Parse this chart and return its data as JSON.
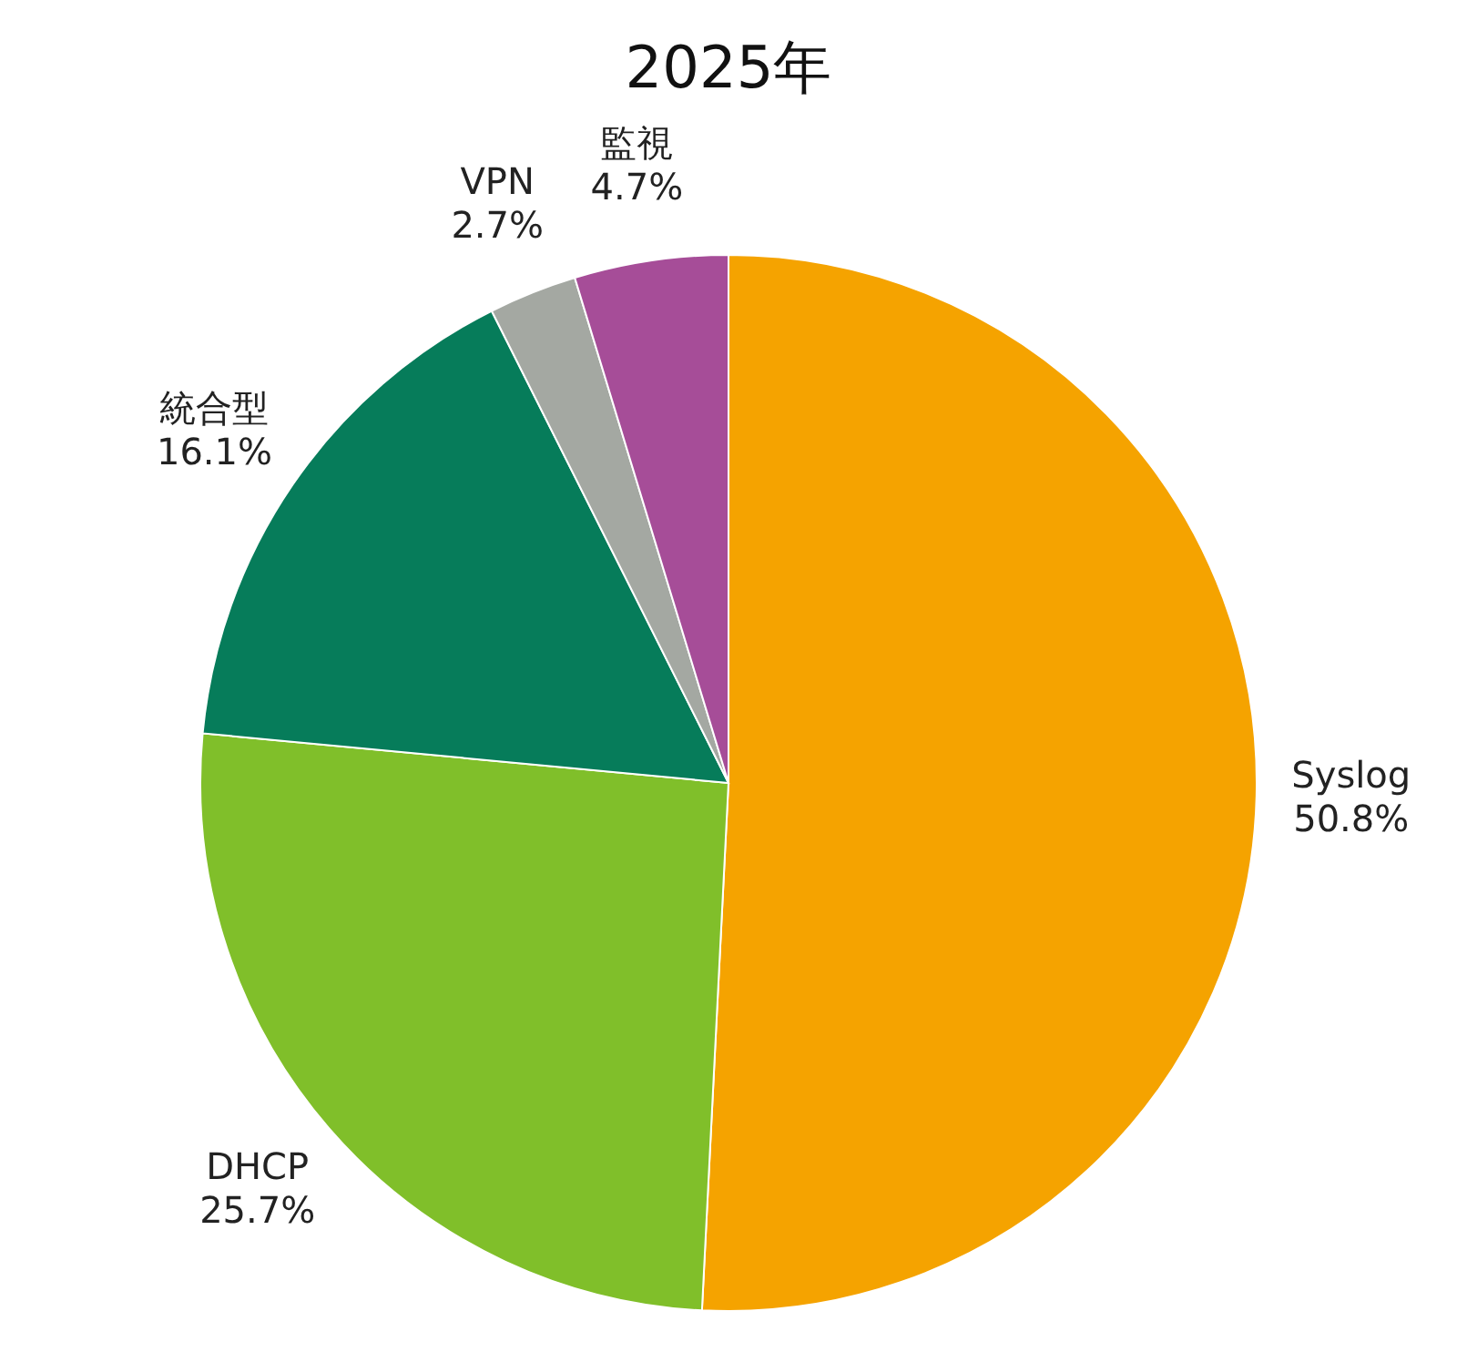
{
  "chart_data": {
    "type": "pie",
    "title": "2025年",
    "categories": [
      "Syslog",
      "DHCP",
      "統合型",
      "VPN",
      "監視"
    ],
    "values": [
      50.8,
      25.7,
      16.1,
      2.7,
      4.7
    ],
    "colors": [
      "#f5a300",
      "#80bf2a",
      "#067c5a",
      "#a4a8a2",
      "#a64d98"
    ],
    "value_labels": [
      "50.8%",
      "25.7%",
      "16.1%",
      "2.7%",
      "4.7%"
    ]
  }
}
